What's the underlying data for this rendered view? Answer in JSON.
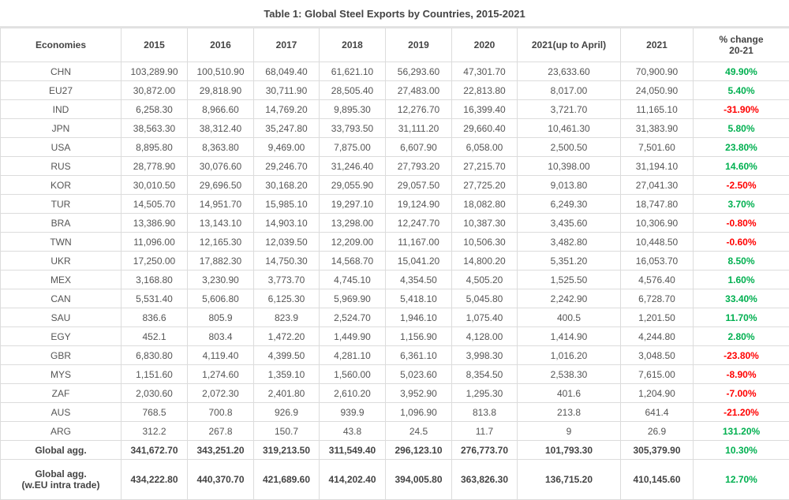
{
  "title": "Table 1: Global Steel Exports by Countries, 2015-2021",
  "colors": {
    "positive": "#00b050",
    "negative": "#ff0000"
  },
  "headers": [
    "Economies",
    "2015",
    "2016",
    "2017",
    "2018",
    "2019",
    "2020",
    "2021(up to April)",
    "2021",
    "% change\n20-21"
  ],
  "rows": [
    [
      "CHN",
      "103,289.90",
      "100,510.90",
      "68,049.40",
      "61,621.10",
      "56,293.60",
      "47,301.70",
      "23,633.60",
      "70,900.90",
      "49.90%"
    ],
    [
      "EU27",
      "30,872.00",
      "29,818.90",
      "30,711.90",
      "28,505.40",
      "27,483.00",
      "22,813.80",
      "8,017.00",
      "24,050.90",
      "5.40%"
    ],
    [
      "IND",
      "6,258.30",
      "8,966.60",
      "14,769.20",
      "9,895.30",
      "12,276.70",
      "16,399.40",
      "3,721.70",
      "11,165.10",
      "-31.90%"
    ],
    [
      "JPN",
      "38,563.30",
      "38,312.40",
      "35,247.80",
      "33,793.50",
      "31,111.20",
      "29,660.40",
      "10,461.30",
      "31,383.90",
      "5.80%"
    ],
    [
      "USA",
      "8,895.80",
      "8,363.80",
      "9,469.00",
      "7,875.00",
      "6,607.90",
      "6,058.00",
      "2,500.50",
      "7,501.60",
      "23.80%"
    ],
    [
      "RUS",
      "28,778.90",
      "30,076.60",
      "29,246.70",
      "31,246.40",
      "27,793.20",
      "27,215.70",
      "10,398.00",
      "31,194.10",
      "14.60%"
    ],
    [
      "KOR",
      "30,010.50",
      "29,696.50",
      "30,168.20",
      "29,055.90",
      "29,057.50",
      "27,725.20",
      "9,013.80",
      "27,041.30",
      "-2.50%"
    ],
    [
      "TUR",
      "14,505.70",
      "14,951.70",
      "15,985.10",
      "19,297.10",
      "19,124.90",
      "18,082.80",
      "6,249.30",
      "18,747.80",
      "3.70%"
    ],
    [
      "BRA",
      "13,386.90",
      "13,143.10",
      "14,903.10",
      "13,298.00",
      "12,247.70",
      "10,387.30",
      "3,435.60",
      "10,306.90",
      "-0.80%"
    ],
    [
      "TWN",
      "11,096.00",
      "12,165.30",
      "12,039.50",
      "12,209.00",
      "11,167.00",
      "10,506.30",
      "3,482.80",
      "10,448.50",
      "-0.60%"
    ],
    [
      "UKR",
      "17,250.00",
      "17,882.30",
      "14,750.30",
      "14,568.70",
      "15,041.20",
      "14,800.20",
      "5,351.20",
      "16,053.70",
      "8.50%"
    ],
    [
      "MEX",
      "3,168.80",
      "3,230.90",
      "3,773.70",
      "4,745.10",
      "4,354.50",
      "4,505.20",
      "1,525.50",
      "4,576.40",
      "1.60%"
    ],
    [
      "CAN",
      "5,531.40",
      "5,606.80",
      "6,125.30",
      "5,969.90",
      "5,418.10",
      "5,045.80",
      "2,242.90",
      "6,728.70",
      "33.40%"
    ],
    [
      "SAU",
      "836.6",
      "805.9",
      "823.9",
      "2,524.70",
      "1,946.10",
      "1,075.40",
      "400.5",
      "1,201.50",
      "11.70%"
    ],
    [
      "EGY",
      "452.1",
      "803.4",
      "1,472.20",
      "1,449.90",
      "1,156.90",
      "4,128.00",
      "1,414.90",
      "4,244.80",
      "2.80%"
    ],
    [
      "GBR",
      "6,830.80",
      "4,119.40",
      "4,399.50",
      "4,281.10",
      "6,361.10",
      "3,998.30",
      "1,016.20",
      "3,048.50",
      "-23.80%"
    ],
    [
      "MYS",
      "1,151.60",
      "1,274.60",
      "1,359.10",
      "1,560.00",
      "5,023.60",
      "8,354.50",
      "2,538.30",
      "7,615.00",
      "-8.90%"
    ],
    [
      "ZAF",
      "2,030.60",
      "2,072.30",
      "2,401.80",
      "2,610.20",
      "3,952.90",
      "1,295.30",
      "401.6",
      "1,204.90",
      "-7.00%"
    ],
    [
      "AUS",
      "768.5",
      "700.8",
      "926.9",
      "939.9",
      "1,096.90",
      "813.8",
      "213.8",
      "641.4",
      "-21.20%"
    ],
    [
      "ARG",
      "312.2",
      "267.8",
      "150.7",
      "43.8",
      "24.5",
      "11.7",
      "9",
      "26.9",
      "131.20%"
    ]
  ],
  "totals": [
    [
      "Global agg.",
      "341,672.70",
      "343,251.20",
      "319,213.50",
      "311,549.40",
      "296,123.10",
      "276,773.70",
      "101,793.30",
      "305,379.90",
      "10.30%"
    ],
    [
      "Global agg.\n(w.EU intra trade)",
      "434,222.80",
      "440,370.70",
      "421,689.60",
      "414,202.40",
      "394,005.80",
      "363,826.30",
      "136,715.20",
      "410,145.60",
      "12.70%"
    ]
  ]
}
